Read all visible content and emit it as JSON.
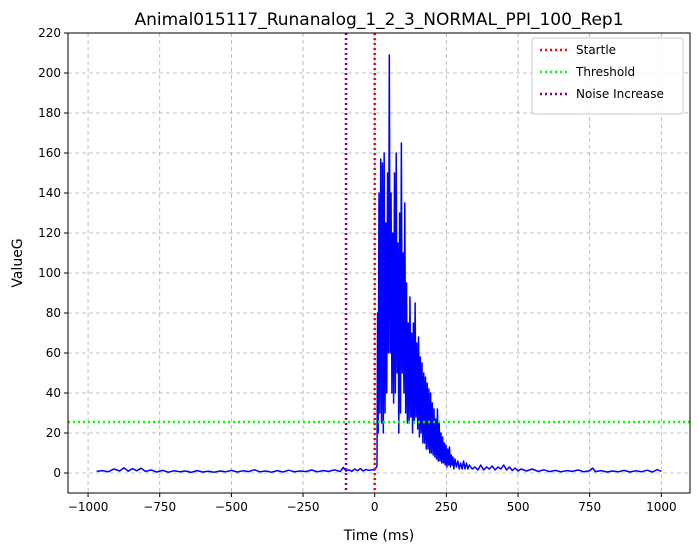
{
  "chart_data": {
    "type": "line",
    "title": "Animal015117_Runanalog_1_2_3_NORMAL_PPI_100_Rep1",
    "xlabel": "Time (ms)",
    "ylabel": "ValueG",
    "xlim": [
      -1070,
      1100
    ],
    "ylim": [
      -10,
      220
    ],
    "xticks": [
      -1000,
      -750,
      -500,
      -250,
      0,
      250,
      500,
      750,
      1000
    ],
    "yticks": [
      0,
      20,
      40,
      60,
      80,
      100,
      120,
      140,
      160,
      180,
      200,
      220
    ],
    "grid": true,
    "legend_position": "top-right",
    "series": [
      {
        "kind": "line",
        "color": "#0000ff",
        "points": [
          [
            -970,
            0.8
          ],
          [
            -950,
            1.2
          ],
          [
            -930,
            0.6
          ],
          [
            -910,
            2.0
          ],
          [
            -890,
            1.0
          ],
          [
            -875,
            2.6
          ],
          [
            -860,
            0.9
          ],
          [
            -845,
            2.2
          ],
          [
            -830,
            1.1
          ],
          [
            -815,
            2.4
          ],
          [
            -800,
            0.8
          ],
          [
            -780,
            1.5
          ],
          [
            -760,
            0.5
          ],
          [
            -740,
            1.3
          ],
          [
            -720,
            0.4
          ],
          [
            -700,
            1.1
          ],
          [
            -680,
            0.6
          ],
          [
            -660,
            1.0
          ],
          [
            -640,
            0.3
          ],
          [
            -620,
            1.2
          ],
          [
            -600,
            0.5
          ],
          [
            -580,
            0.9
          ],
          [
            -560,
            0.4
          ],
          [
            -540,
            1.0
          ],
          [
            -520,
            0.6
          ],
          [
            -500,
            1.3
          ],
          [
            -480,
            0.5
          ],
          [
            -460,
            1.1
          ],
          [
            -440,
            0.7
          ],
          [
            -420,
            1.6
          ],
          [
            -400,
            0.6
          ],
          [
            -380,
            1.0
          ],
          [
            -360,
            0.4
          ],
          [
            -340,
            1.2
          ],
          [
            -320,
            0.5
          ],
          [
            -300,
            1.4
          ],
          [
            -280,
            0.6
          ],
          [
            -260,
            1.0
          ],
          [
            -240,
            0.7
          ],
          [
            -220,
            1.5
          ],
          [
            -200,
            0.6
          ],
          [
            -180,
            1.2
          ],
          [
            -160,
            0.8
          ],
          [
            -140,
            1.6
          ],
          [
            -120,
            0.7
          ],
          [
            -110,
            2.8
          ],
          [
            -100,
            1.0
          ],
          [
            -90,
            1.6
          ],
          [
            -80,
            0.8
          ],
          [
            -70,
            2.0
          ],
          [
            -60,
            1.2
          ],
          [
            -50,
            2.2
          ],
          [
            -40,
            1.0
          ],
          [
            -30,
            1.8
          ],
          [
            -20,
            1.3
          ],
          [
            -10,
            1.6
          ],
          [
            0,
            1.5
          ],
          [
            4,
            2.5
          ],
          [
            8,
            3.5
          ],
          [
            10,
            80
          ],
          [
            12,
            20
          ],
          [
            15,
            140
          ],
          [
            18,
            30
          ],
          [
            21,
            157
          ],
          [
            24,
            25
          ],
          [
            27,
            155
          ],
          [
            30,
            20
          ],
          [
            33,
            160
          ],
          [
            36,
            30
          ],
          [
            39,
            125
          ],
          [
            42,
            40
          ],
          [
            45,
            150
          ],
          [
            48,
            60
          ],
          [
            51,
            209
          ],
          [
            54,
            60
          ],
          [
            57,
            140
          ],
          [
            60,
            40
          ],
          [
            63,
            120
          ],
          [
            66,
            35
          ],
          [
            69,
            150
          ],
          [
            72,
            40
          ],
          [
            75,
            160
          ],
          [
            78,
            50
          ],
          [
            81,
            115
          ],
          [
            84,
            20
          ],
          [
            87,
            130
          ],
          [
            90,
            30
          ],
          [
            93,
            165
          ],
          [
            96,
            50
          ],
          [
            99,
            110
          ],
          [
            102,
            40
          ],
          [
            105,
            135
          ],
          [
            108,
            30
          ],
          [
            111,
            95
          ],
          [
            114,
            25
          ],
          [
            117,
            75
          ],
          [
            120,
            25
          ],
          [
            123,
            88
          ],
          [
            126,
            28
          ],
          [
            129,
            70
          ],
          [
            132,
            20
          ],
          [
            135,
            75
          ],
          [
            138,
            25
          ],
          [
            141,
            85
          ],
          [
            144,
            28
          ],
          [
            147,
            65
          ],
          [
            150,
            22
          ],
          [
            153,
            68
          ],
          [
            156,
            18
          ],
          [
            159,
            58
          ],
          [
            162,
            20
          ],
          [
            165,
            55
          ],
          [
            168,
            15
          ],
          [
            171,
            50
          ],
          [
            174,
            15
          ],
          [
            177,
            48
          ],
          [
            180,
            12
          ],
          [
            183,
            45
          ],
          [
            186,
            12
          ],
          [
            189,
            42
          ],
          [
            192,
            10
          ],
          [
            195,
            40
          ],
          [
            198,
            10
          ],
          [
            201,
            35
          ],
          [
            204,
            9
          ],
          [
            207,
            32
          ],
          [
            210,
            8
          ],
          [
            213,
            27
          ],
          [
            216,
            7
          ],
          [
            219,
            32
          ],
          [
            222,
            6
          ],
          [
            225,
            25
          ],
          [
            228,
            6
          ],
          [
            231,
            20
          ],
          [
            234,
            5
          ],
          [
            237,
            18
          ],
          [
            240,
            5
          ],
          [
            243,
            15
          ],
          [
            246,
            4
          ],
          [
            249,
            14
          ],
          [
            252,
            3
          ],
          [
            255,
            12
          ],
          [
            258,
            4
          ],
          [
            261,
            13
          ],
          [
            264,
            3
          ],
          [
            267,
            9
          ],
          [
            270,
            4
          ],
          [
            273,
            8
          ],
          [
            276,
            2
          ],
          [
            280,
            7
          ],
          [
            285,
            3
          ],
          [
            290,
            6
          ],
          [
            295,
            2
          ],
          [
            300,
            5
          ],
          [
            305,
            2
          ],
          [
            310,
            6
          ],
          [
            315,
            2
          ],
          [
            320,
            5
          ],
          [
            325,
            2
          ],
          [
            330,
            4
          ],
          [
            340,
            2
          ],
          [
            350,
            3
          ],
          [
            360,
            1.5
          ],
          [
            370,
            4
          ],
          [
            380,
            1.5
          ],
          [
            390,
            3
          ],
          [
            400,
            2
          ],
          [
            410,
            3.5
          ],
          [
            420,
            1.5
          ],
          [
            430,
            3
          ],
          [
            440,
            2
          ],
          [
            450,
            4
          ],
          [
            460,
            1.5
          ],
          [
            470,
            3
          ],
          [
            480,
            1.2
          ],
          [
            490,
            2.5
          ],
          [
            500,
            1.0
          ],
          [
            510,
            2.0
          ],
          [
            530,
            1.0
          ],
          [
            550,
            2.0
          ],
          [
            570,
            0.8
          ],
          [
            590,
            1.6
          ],
          [
            610,
            0.7
          ],
          [
            630,
            1.3
          ],
          [
            650,
            0.6
          ],
          [
            670,
            1.2
          ],
          [
            690,
            0.8
          ],
          [
            710,
            1.5
          ],
          [
            730,
            0.6
          ],
          [
            750,
            1.1
          ],
          [
            760,
            2.5
          ],
          [
            770,
            0.7
          ],
          [
            790,
            1.2
          ],
          [
            810,
            0.5
          ],
          [
            830,
            1.0
          ],
          [
            850,
            0.6
          ],
          [
            870,
            1.3
          ],
          [
            890,
            0.5
          ],
          [
            910,
            1.1
          ],
          [
            930,
            0.6
          ],
          [
            950,
            1.4
          ],
          [
            970,
            0.5
          ],
          [
            985,
            1.7
          ],
          [
            1000,
            0.8
          ]
        ]
      },
      {
        "name": "Startle",
        "kind": "vline",
        "x": 0,
        "color": "#ff0000"
      },
      {
        "name": "Threshold",
        "kind": "hline",
        "y": 25.5,
        "color": "#00ff00"
      },
      {
        "name": "Noise Increase",
        "kind": "vline",
        "x": -100,
        "color": "#800080"
      }
    ]
  }
}
